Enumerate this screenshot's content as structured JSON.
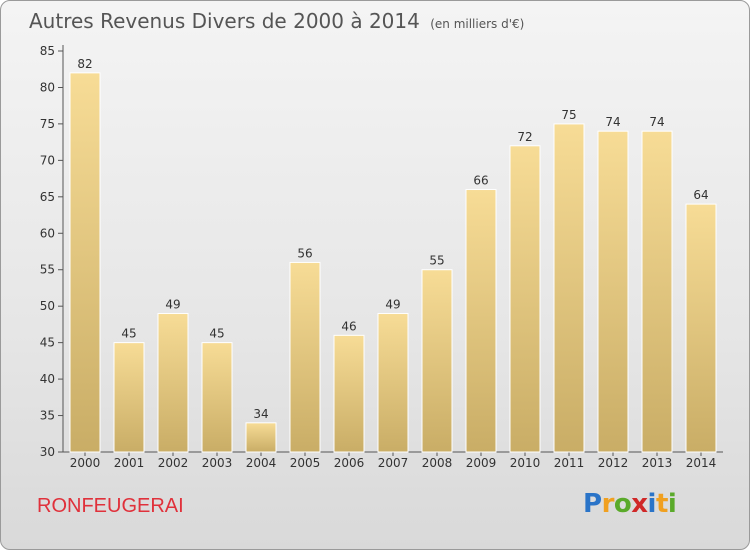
{
  "header": {
    "title": "Autres Revenus Divers de 2000 à 2014",
    "unit": "(en milliers d'€)"
  },
  "footer": {
    "place": "RONFEUGERAI",
    "logo_letters": [
      {
        "ch": "P",
        "color": "#2a74c8"
      },
      {
        "ch": "r",
        "color": "#f0a020"
      },
      {
        "ch": "o",
        "color": "#5aaa2a"
      },
      {
        "ch": "x",
        "color": "#d02828"
      },
      {
        "ch": "i",
        "color": "#2a74c8"
      },
      {
        "ch": "t",
        "color": "#f0a020"
      },
      {
        "ch": "i",
        "color": "#5aaa2a"
      }
    ]
  },
  "chart_data": {
    "type": "bar",
    "categories": [
      "2000",
      "2001",
      "2002",
      "2003",
      "2004",
      "2005",
      "2006",
      "2007",
      "2008",
      "2009",
      "2010",
      "2011",
      "2012",
      "2013",
      "2014"
    ],
    "values": [
      82,
      45,
      49,
      45,
      34,
      56,
      46,
      49,
      55,
      66,
      72,
      75,
      74,
      74,
      64
    ],
    "title": "Autres Revenus Divers de 2000 à 2014",
    "ylim": [
      30,
      85
    ],
    "yticks": [
      30,
      35,
      40,
      45,
      50,
      55,
      60,
      65,
      70,
      75,
      80,
      85
    ],
    "grid": false,
    "colors": {
      "bar_top": "#f7dc96",
      "bar_bottom": "#c9ad66"
    }
  }
}
